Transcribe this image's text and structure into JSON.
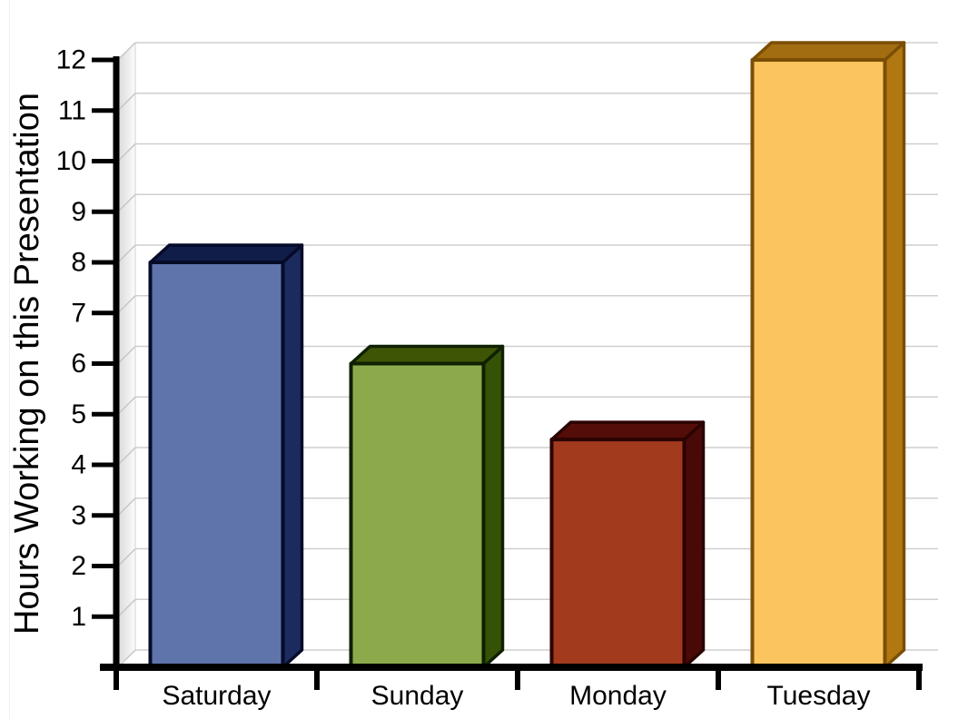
{
  "chart_data": {
    "type": "bar",
    "style": "3d-extruded-bars",
    "title": "",
    "xlabel": "",
    "ylabel": "Hours Working on this Presentation",
    "categories": [
      "Saturday",
      "Sunday",
      "Monday",
      "Tuesday"
    ],
    "values": [
      8,
      6,
      4.5,
      12
    ],
    "ylim": [
      0,
      12
    ],
    "ytick_labels": [
      "1",
      "2",
      "3",
      "4",
      "5",
      "6",
      "7",
      "8",
      "9",
      "10",
      "11",
      "12"
    ],
    "grid": true,
    "legend": "none",
    "background_color": "#ffffff",
    "gridline_color": "#cfcfcf",
    "wall_gradient": [
      "#d6d6d6",
      "#fcfcfc"
    ],
    "wall_edge_color": "#c4c4c4",
    "axis_color": "#000000",
    "text_color": "#000000",
    "bar_colors": [
      {
        "name": "blue",
        "face": "#5f74ab",
        "top": "#111d49",
        "side": "#1c2b5f",
        "outline": "#060b28"
      },
      {
        "name": "green",
        "face": "#8caa4b",
        "top": "#3e5506",
        "side": "#365207",
        "outline": "#0f2002"
      },
      {
        "name": "red",
        "face": "#a23a1e",
        "top": "#540d08",
        "side": "#490a07",
        "outline": "#2a0302"
      },
      {
        "name": "yellow",
        "face": "#fcc45e",
        "top": "#a26d11",
        "side": "#b17812",
        "outline": "#7b4e06"
      }
    ]
  }
}
